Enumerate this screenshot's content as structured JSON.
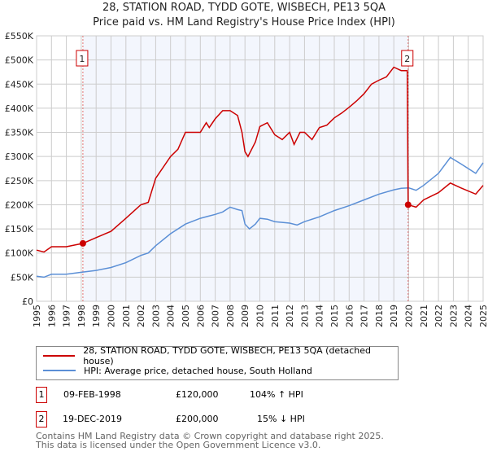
{
  "title": "28, STATION ROAD, TYDD GOTE, WISBECH, PE13 5QA",
  "subtitle": "Price paid vs. HM Land Registry's House Price Index (HPI)",
  "chart_data": {
    "type": "line",
    "title": "28, STATION ROAD, TYDD GOTE, WISBECH, PE13 5QA",
    "subtitle": "Price paid vs. HM Land Registry's House Price Index (HPI)",
    "xlim": [
      1995,
      2025
    ],
    "ylim": [
      0,
      550000
    ],
    "xticks": [
      "1995",
      "1996",
      "1997",
      "1998",
      "1999",
      "2000",
      "2001",
      "2002",
      "2003",
      "2004",
      "2005",
      "2006",
      "2007",
      "2008",
      "2009",
      "2010",
      "2011",
      "2012",
      "2013",
      "2014",
      "2015",
      "2016",
      "2017",
      "2018",
      "2019",
      "2020",
      "2021",
      "2022",
      "2023",
      "2024",
      "2025"
    ],
    "yticks": [
      {
        "v": 0,
        "l": "£0"
      },
      {
        "v": 50000,
        "l": "£50K"
      },
      {
        "v": 100000,
        "l": "£100K"
      },
      {
        "v": 150000,
        "l": "£150K"
      },
      {
        "v": 200000,
        "l": "£200K"
      },
      {
        "v": 250000,
        "l": "£250K"
      },
      {
        "v": 300000,
        "l": "£300K"
      },
      {
        "v": 350000,
        "l": "£350K"
      },
      {
        "v": 400000,
        "l": "£400K"
      },
      {
        "v": 450000,
        "l": "£450K"
      },
      {
        "v": 500000,
        "l": "£500K"
      },
      {
        "v": 550000,
        "l": "£550K"
      }
    ],
    "grid": true,
    "shaded_range": [
      1998.11,
      2019.96
    ],
    "series": [
      {
        "name": "28, STATION ROAD, TYDD GOTE, WISBECH, PE13 5QA (detached house)",
        "color": "#cc0000",
        "x": [
          1995,
          1995.5,
          1996,
          1997,
          1998.11,
          1999,
          2000,
          2001,
          2002,
          2002.5,
          2003,
          2004,
          2004.5,
          2005,
          2006,
          2006.4,
          2006.6,
          2007,
          2007.5,
          2008,
          2008.5,
          2008.8,
          2009,
          2009.2,
          2009.7,
          2010,
          2010.5,
          2011,
          2011.5,
          2012,
          2012.3,
          2012.7,
          2013,
          2013.5,
          2014,
          2014.5,
          2015,
          2015.5,
          2016,
          2016.5,
          2017,
          2017.5,
          2018,
          2018.5,
          2019,
          2019.5,
          2019.9,
          2019.96,
          2020.5,
          2021,
          2022,
          2022.8,
          2023.5,
          2024.5,
          2025
        ],
        "y": [
          106000,
          102000,
          113000,
          113000,
          120000,
          132000,
          145000,
          172000,
          200000,
          205000,
          255000,
          300000,
          315000,
          350000,
          350000,
          370000,
          360000,
          378000,
          395000,
          395000,
          385000,
          350000,
          310000,
          300000,
          330000,
          362000,
          370000,
          345000,
          335000,
          350000,
          325000,
          350000,
          350000,
          335000,
          360000,
          365000,
          380000,
          390000,
          402000,
          415000,
          430000,
          450000,
          458000,
          465000,
          485000,
          478000,
          478000,
          200000,
          195000,
          210000,
          225000,
          245000,
          235000,
          222000,
          240000
        ]
      },
      {
        "name": "HPI: Average price, detached house, South Holland",
        "color": "#5b8fd6",
        "x": [
          1995,
          1995.5,
          1996,
          1997,
          1998,
          1999,
          2000,
          2001,
          2002,
          2002.5,
          2003,
          2004,
          2005,
          2006,
          2007,
          2007.5,
          2008,
          2008.5,
          2008.8,
          2009,
          2009.3,
          2009.7,
          2010,
          2010.5,
          2011,
          2012,
          2012.5,
          2013,
          2014,
          2015,
          2016,
          2017,
          2018,
          2019,
          2019.5,
          2020,
          2020.5,
          2021,
          2022,
          2022.8,
          2023.5,
          2024.5,
          2025
        ],
        "y": [
          52000,
          50000,
          56000,
          56000,
          60000,
          64000,
          70000,
          80000,
          95000,
          100000,
          115000,
          140000,
          160000,
          172000,
          180000,
          185000,
          195000,
          190000,
          188000,
          160000,
          150000,
          160000,
          172000,
          170000,
          165000,
          162000,
          158000,
          165000,
          175000,
          188000,
          198000,
          210000,
          222000,
          231000,
          234000,
          235000,
          230000,
          240000,
          265000,
          298000,
          285000,
          265000,
          287000
        ]
      }
    ],
    "sales": [
      {
        "n": "1",
        "x": 1998.11,
        "y": 120000
      },
      {
        "n": "2",
        "x": 2019.96,
        "y": 200000
      }
    ]
  },
  "legend": [
    {
      "label": "28, STATION ROAD, TYDD GOTE, WISBECH, PE13 5QA (detached house)",
      "color": "#cc0000"
    },
    {
      "label": "HPI: Average price, detached house, South Holland",
      "color": "#5b8fd6"
    }
  ],
  "transactions": [
    {
      "num": "1",
      "date": "09-FEB-1998",
      "price": "£120,000",
      "hpi": "104% ↑ HPI"
    },
    {
      "num": "2",
      "date": "19-DEC-2019",
      "price": "£200,000",
      "hpi": "15% ↓ HPI"
    }
  ],
  "footer": {
    "line1": "Contains HM Land Registry data © Crown copyright and database right 2025.",
    "line2": "This data is licensed under the Open Government Licence v3.0."
  }
}
